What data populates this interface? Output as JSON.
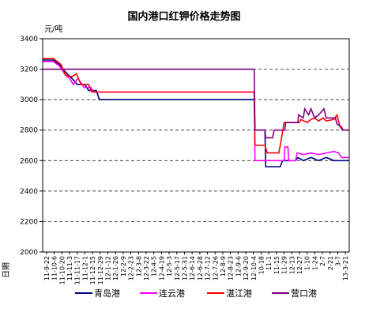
{
  "chart_data": {
    "type": "line",
    "title": "国内港口红钾价格走势图",
    "ylabel": "元/吨",
    "xlabel": "日期",
    "ylim": [
      2000,
      3400
    ],
    "yticks": [
      2000,
      2200,
      2400,
      2600,
      2800,
      3000,
      3200,
      3400
    ],
    "grid": "horizontal dashed",
    "legend_position": "bottom",
    "x_categories": [
      "11-9-22",
      "11-10-6",
      "11-10-20",
      "11-11-3",
      "11-11-17",
      "11-12-1",
      "11-12-15",
      "11-12-29",
      "12-1-12",
      "12-1-26",
      "12-2-9",
      "12-2-23",
      "12-3-8",
      "12-3-22",
      "12-4-5",
      "12-4-19",
      "12-5-3",
      "12-5-17",
      "12-5-31",
      "12-6-14",
      "12-6-28",
      "12-7-12",
      "12-7-26",
      "12-8-9",
      "12-8-23",
      "12-9-6",
      "12-9-20",
      "12-10-4",
      "12-10-18",
      "12-11-1",
      "12-11-15",
      "12-11-29",
      "12-12-13",
      "12-12-27",
      "13-1-10",
      "13-1-24",
      "13-2-7",
      "13-2-21",
      "13-3-7",
      "13-3-21"
    ],
    "x_tick_labels": [
      "11-9-22",
      "11-10-6",
      "11-10-20",
      "11-11-3",
      "11-11-17",
      "11-12-1",
      "11-12-15",
      "11-12-29",
      "12-1-12",
      "12-1-26",
      "12-2-9",
      "12-2-23",
      "12-3-8",
      "12-3-22",
      "12-4-5",
      "12-4-19",
      "12-5-3",
      "12-5-17",
      "12-5-31",
      "12-6-14",
      "12-6-28",
      "12-7-12",
      "12-7-26",
      "12-8-9",
      "12-8-23",
      "12-9-6",
      "12-9-20",
      "12-10-4",
      "10-18",
      "11-1",
      "11-15",
      "11-29",
      "12-13",
      "12-27",
      "1-10",
      "1-24",
      "2-7",
      "2-21",
      "3-7",
      "13-3-21"
    ],
    "series": [
      {
        "name": "青岛港",
        "color": "#000080",
        "points": [
          [
            0,
            3260
          ],
          [
            1.4,
            3260
          ],
          [
            2.2,
            3230
          ],
          [
            3,
            3180
          ],
          [
            4,
            3130
          ],
          [
            4.5,
            3100
          ],
          [
            5.5,
            3100
          ],
          [
            6,
            3060
          ],
          [
            7,
            3060
          ],
          [
            7.4,
            3000
          ],
          [
            27.6,
            3000
          ],
          [
            27.7,
            2800
          ],
          [
            29,
            2800
          ],
          [
            29.1,
            2560
          ],
          [
            31,
            2560
          ],
          [
            31.3,
            2600
          ],
          [
            33,
            2600
          ],
          [
            33.3,
            2620
          ],
          [
            34,
            2600
          ],
          [
            35,
            2620
          ],
          [
            36,
            2600
          ],
          [
            37,
            2620
          ],
          [
            38,
            2600
          ],
          [
            40,
            2600
          ]
        ]
      },
      {
        "name": "连云港",
        "color": "#ff00ff",
        "points": [
          [
            0,
            3250
          ],
          [
            1.4,
            3250
          ],
          [
            2.2,
            3220
          ],
          [
            3,
            3160
          ],
          [
            3.5,
            3140
          ],
          [
            4,
            3100
          ],
          [
            4.6,
            3140
          ],
          [
            5.4,
            3080
          ],
          [
            6.3,
            3080
          ],
          [
            6.6,
            3050
          ],
          [
            27.6,
            3050
          ],
          [
            27.7,
            2600
          ],
          [
            31.5,
            2600
          ],
          [
            31.6,
            2690
          ],
          [
            32,
            2690
          ],
          [
            32.1,
            2600
          ],
          [
            33,
            2600
          ],
          [
            33.2,
            2650
          ],
          [
            34,
            2640
          ],
          [
            35,
            2650
          ],
          [
            36,
            2640
          ],
          [
            37,
            2650
          ],
          [
            38,
            2660
          ],
          [
            38.6,
            2650
          ],
          [
            39,
            2620
          ],
          [
            40,
            2620
          ]
        ]
      },
      {
        "name": "湛江港",
        "color": "#ff0000",
        "points": [
          [
            0,
            3270
          ],
          [
            1.4,
            3270
          ],
          [
            2.4,
            3230
          ],
          [
            3,
            3160
          ],
          [
            3.8,
            3150
          ],
          [
            4.4,
            3170
          ],
          [
            5,
            3100
          ],
          [
            6,
            3100
          ],
          [
            6.4,
            3050
          ],
          [
            27.6,
            3050
          ],
          [
            27.7,
            2700
          ],
          [
            29,
            2700
          ],
          [
            29.3,
            2650
          ],
          [
            30.8,
            2650
          ],
          [
            31,
            2700
          ],
          [
            31.5,
            2850
          ],
          [
            33.5,
            2850
          ],
          [
            33.7,
            2870
          ],
          [
            34.5,
            2850
          ],
          [
            35,
            2870
          ],
          [
            35.5,
            2880
          ],
          [
            36,
            2860
          ],
          [
            36.6,
            2880
          ],
          [
            37,
            2860
          ],
          [
            38,
            2870
          ],
          [
            38.4,
            2900
          ],
          [
            38.8,
            2820
          ],
          [
            39.2,
            2800
          ],
          [
            40,
            2800
          ]
        ]
      },
      {
        "name": "营口港",
        "color": "#800080",
        "points": [
          [
            0,
            3200
          ],
          [
            27.6,
            3200
          ],
          [
            27.7,
            2800
          ],
          [
            29,
            2800
          ],
          [
            29.1,
            2750
          ],
          [
            30,
            2750
          ],
          [
            30.2,
            2800
          ],
          [
            31.6,
            2800
          ],
          [
            31.7,
            2850
          ],
          [
            33.3,
            2850
          ],
          [
            33.4,
            2900
          ],
          [
            34,
            2880
          ],
          [
            34.2,
            2940
          ],
          [
            34.7,
            2900
          ],
          [
            35,
            2940
          ],
          [
            35.5,
            2880
          ],
          [
            36,
            2900
          ],
          [
            36.7,
            2940
          ],
          [
            37,
            2880
          ],
          [
            38.2,
            2880
          ],
          [
            38.4,
            2840
          ],
          [
            39,
            2820
          ],
          [
            39.2,
            2800
          ],
          [
            40,
            2800
          ]
        ]
      }
    ]
  }
}
